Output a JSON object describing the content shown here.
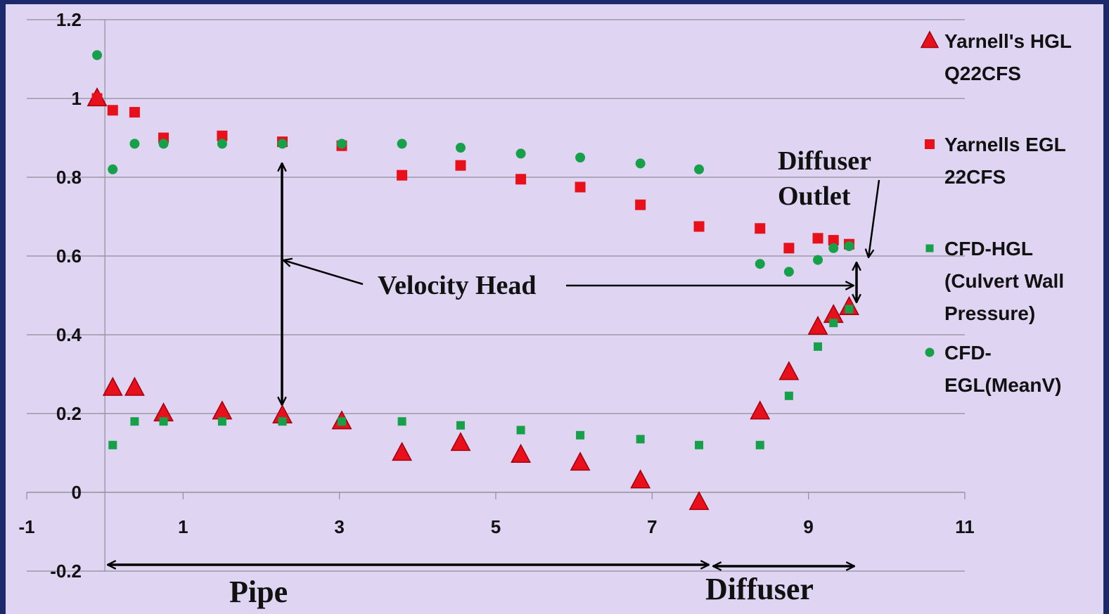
{
  "chart_data": {
    "type": "scatter",
    "title": "",
    "xlabel": "",
    "ylabel": "",
    "xlim": [
      -1,
      11
    ],
    "ylim": [
      -0.2,
      1.2
    ],
    "x_ticks": [
      "-1",
      "1",
      "3",
      "5",
      "7",
      "9",
      "11"
    ],
    "y_ticks": [
      "-0.2",
      "0",
      "0.2",
      "0.4",
      "0.6",
      "0.8",
      "1",
      "1.2"
    ],
    "grid": "horizontal",
    "legend_position": "right",
    "series": [
      {
        "name": "Yarnell's HGL Q22CFS",
        "marker": "triangle",
        "color": "#e8101a",
        "points": [
          [
            -0.1,
            1.0
          ],
          [
            0.1,
            0.265
          ],
          [
            0.38,
            0.265
          ],
          [
            0.75,
            0.2
          ],
          [
            1.5,
            0.205
          ],
          [
            2.27,
            0.195
          ],
          [
            3.03,
            0.18
          ],
          [
            3.8,
            0.1
          ],
          [
            4.55,
            0.125
          ],
          [
            5.32,
            0.095
          ],
          [
            6.08,
            0.075
          ],
          [
            6.85,
            0.03
          ],
          [
            7.6,
            -0.025
          ],
          [
            8.38,
            0.205
          ],
          [
            8.75,
            0.305
          ],
          [
            9.12,
            0.42
          ],
          [
            9.32,
            0.45
          ],
          [
            9.52,
            0.47
          ]
        ]
      },
      {
        "name": "Yarnells EGL 22CFS",
        "marker": "square",
        "color": "#e8101a",
        "points": [
          [
            -0.1,
            1.0
          ],
          [
            0.1,
            0.97
          ],
          [
            0.38,
            0.965
          ],
          [
            0.75,
            0.9
          ],
          [
            1.5,
            0.905
          ],
          [
            2.27,
            0.89
          ],
          [
            3.03,
            0.88
          ],
          [
            3.8,
            0.805
          ],
          [
            4.55,
            0.83
          ],
          [
            5.32,
            0.795
          ],
          [
            6.08,
            0.775
          ],
          [
            6.85,
            0.73
          ],
          [
            7.6,
            0.675
          ],
          [
            8.38,
            0.67
          ],
          [
            8.75,
            0.62
          ],
          [
            9.12,
            0.645
          ],
          [
            9.32,
            0.64
          ],
          [
            9.52,
            0.63
          ]
        ]
      },
      {
        "name": "CFD-HGL (Culvert Wall Pressure)",
        "marker": "square",
        "color": "#16a04a",
        "points": [
          [
            0.1,
            0.12
          ],
          [
            0.38,
            0.18
          ],
          [
            0.75,
            0.18
          ],
          [
            1.5,
            0.18
          ],
          [
            2.27,
            0.18
          ],
          [
            3.03,
            0.18
          ],
          [
            3.8,
            0.18
          ],
          [
            4.55,
            0.17
          ],
          [
            5.32,
            0.158
          ],
          [
            6.08,
            0.145
          ],
          [
            6.85,
            0.135
          ],
          [
            7.6,
            0.12
          ],
          [
            8.38,
            0.12
          ],
          [
            8.75,
            0.245
          ],
          [
            9.12,
            0.37
          ],
          [
            9.32,
            0.43
          ],
          [
            9.52,
            0.465
          ]
        ]
      },
      {
        "name": "CFD-EGL(MeanV)",
        "marker": "circle",
        "color": "#16a04a",
        "points": [
          [
            -0.1,
            1.11
          ],
          [
            0.1,
            0.82
          ],
          [
            0.38,
            0.885
          ],
          [
            0.75,
            0.885
          ],
          [
            1.5,
            0.885
          ],
          [
            2.27,
            0.885
          ],
          [
            3.03,
            0.885
          ],
          [
            3.8,
            0.885
          ],
          [
            4.55,
            0.875
          ],
          [
            5.32,
            0.86
          ],
          [
            6.08,
            0.85
          ],
          [
            6.85,
            0.835
          ],
          [
            7.6,
            0.82
          ],
          [
            8.38,
            0.58
          ],
          [
            8.75,
            0.56
          ],
          [
            9.12,
            0.59
          ],
          [
            9.32,
            0.62
          ],
          [
            9.52,
            0.625
          ]
        ]
      }
    ],
    "legend": [
      {
        "lines": [
          "Yarnell's HGL",
          "Q22CFS"
        ]
      },
      {
        "lines": [
          "Yarnells EGL",
          "22CFS"
        ]
      },
      {
        "lines": [
          "CFD-HGL",
          "(Culvert Wall",
          "Pressure)"
        ]
      },
      {
        "lines": [
          "CFD-",
          "EGL(MeanV)"
        ]
      }
    ],
    "annotations": {
      "velocity_head": "Velocity Head",
      "diffuser_outlet_line1": "Diffuser",
      "diffuser_outlet_line2": "Outlet",
      "pipe": "Pipe",
      "diffuser": "Diffuser"
    }
  }
}
